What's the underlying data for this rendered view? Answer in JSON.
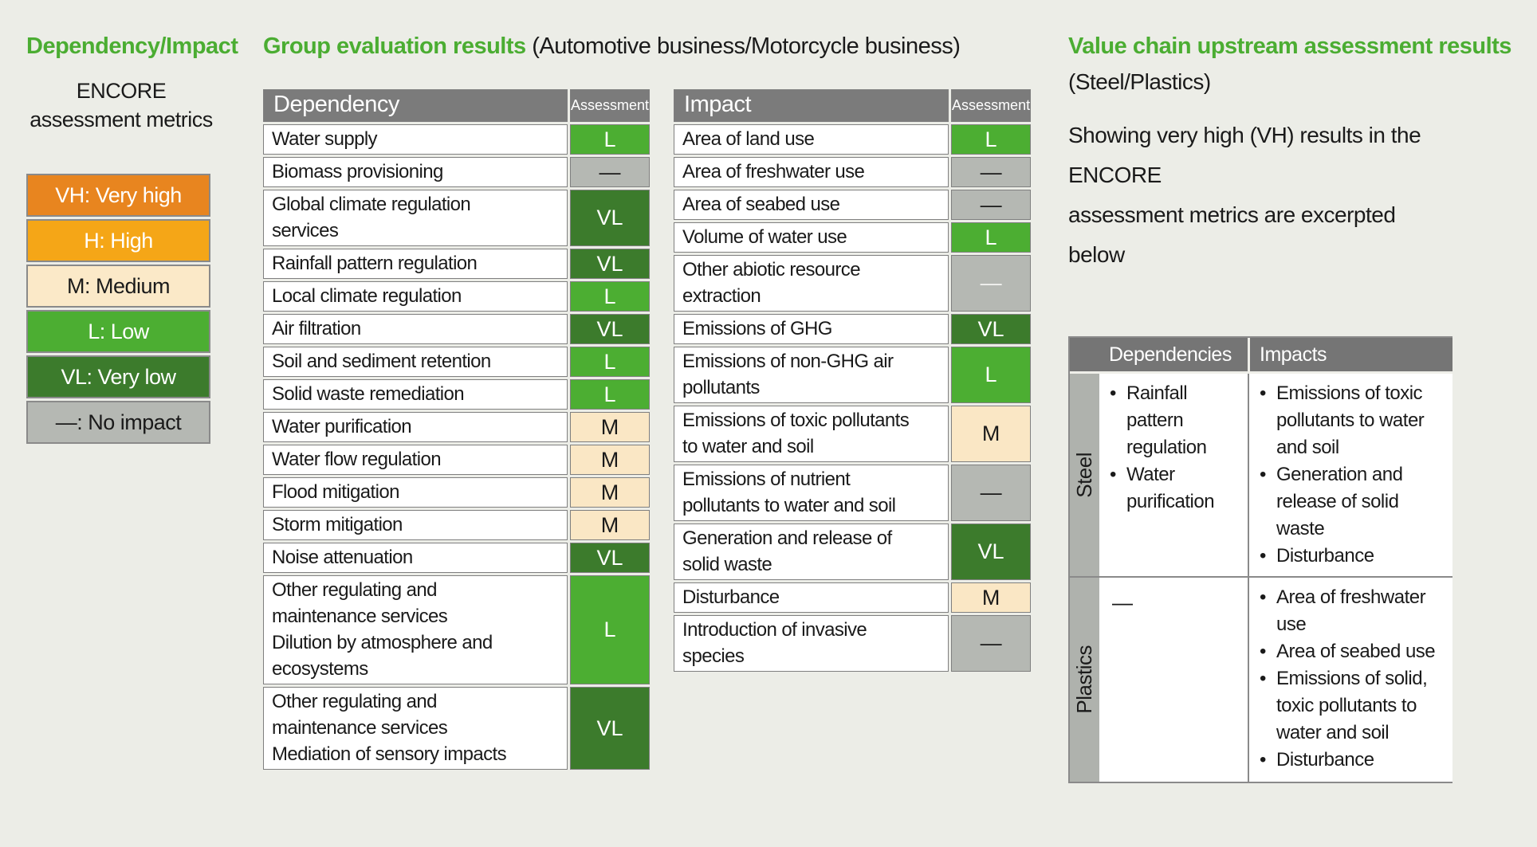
{
  "colors": {
    "background": "#ECEDE7",
    "accent_green": "#4BAD32",
    "header_gray": "#7B7B7B",
    "border_gray": "#7F7F7F",
    "label_gray": "#AFB2AD",
    "text": "#1A1A1A"
  },
  "levels": {
    "L": {
      "text": "L",
      "bg": "#4CAE32",
      "fg": "#FFFFFF"
    },
    "VL": {
      "text": "VL",
      "bg": "#3C7B2C",
      "fg": "#FFFFFF"
    },
    "M": {
      "text": "M",
      "bg": "#FAE7C5",
      "fg": "#1A1A1A"
    },
    "NONE": {
      "text": "—",
      "bg": "#B5B8B3",
      "fg": "#1A1A1A"
    },
    "NONE_LIGHT": {
      "text": "—",
      "bg": "#B5B8B3",
      "fg": "#F4F4F2"
    }
  },
  "legend": {
    "title": "Dependency/Impact",
    "subtitle_line1": "ENCORE",
    "subtitle_line2": "assessment metrics",
    "items": [
      {
        "label": "VH: Very high",
        "bg": "#E8851F",
        "fg": "#FFFFFF"
      },
      {
        "label": "H: High",
        "bg": "#F5A617",
        "fg": "#FFFFFF"
      },
      {
        "label": "M: Medium",
        "bg": "#FBE9C8",
        "fg": "#1A1A1A"
      },
      {
        "label": "L: Low",
        "bg": "#4CAE32",
        "fg": "#FFFFFF"
      },
      {
        "label": "VL: Very low",
        "bg": "#3C7B2C",
        "fg": "#FFFFFF"
      },
      {
        "label": "—: No impact",
        "bg": "#B5B8B3",
        "fg": "#1A1A1A"
      }
    ]
  },
  "group_results": {
    "title": "Group evaluation results",
    "subtitle": " (Automotive business/Motorcycle business)",
    "assessment_header": "Assessment",
    "dependency": {
      "header": "Dependency",
      "rows": [
        {
          "lines": [
            "Water supply"
          ],
          "level": "L"
        },
        {
          "lines": [
            "Biomass provisioning"
          ],
          "level": "NONE"
        },
        {
          "lines": [
            "Global climate regulation",
            "services"
          ],
          "level": "VL"
        },
        {
          "lines": [
            "Rainfall pattern regulation"
          ],
          "level": "VL"
        },
        {
          "lines": [
            "Local climate regulation"
          ],
          "level": "L"
        },
        {
          "lines": [
            "Air filtration"
          ],
          "level": "VL"
        },
        {
          "lines": [
            "Soil and sediment retention"
          ],
          "level": "L"
        },
        {
          "lines": [
            "Solid waste remediation"
          ],
          "level": "L"
        },
        {
          "lines": [
            "Water purification"
          ],
          "level": "M"
        },
        {
          "lines": [
            "Water flow regulation"
          ],
          "level": "M"
        },
        {
          "lines": [
            "Flood mitigation"
          ],
          "level": "M"
        },
        {
          "lines": [
            "Storm mitigation"
          ],
          "level": "M"
        },
        {
          "lines": [
            "Noise attenuation"
          ],
          "level": "VL"
        },
        {
          "lines": [
            "Other regulating and",
            "maintenance services",
            "Dilution by atmosphere and",
            "ecosystems"
          ],
          "level": "L"
        },
        {
          "lines": [
            "Other regulating and",
            "maintenance services",
            "Mediation of sensory impacts"
          ],
          "level": "VL"
        }
      ]
    },
    "impact": {
      "header": "Impact",
      "rows": [
        {
          "lines": [
            "Area of land use"
          ],
          "level": "L"
        },
        {
          "lines": [
            "Area of freshwater use"
          ],
          "level": "NONE"
        },
        {
          "lines": [
            "Area of seabed use"
          ],
          "level": "NONE"
        },
        {
          "lines": [
            "Volume of water use"
          ],
          "level": "L"
        },
        {
          "lines": [
            "Other abiotic resource",
            "extraction"
          ],
          "level": "NONE_LIGHT"
        },
        {
          "lines": [
            "Emissions of GHG"
          ],
          "level": "VL"
        },
        {
          "lines": [
            "Emissions of non-GHG air",
            "pollutants"
          ],
          "level": "L"
        },
        {
          "lines": [
            "Emissions of toxic pollutants",
            "to water and soil"
          ],
          "level": "M"
        },
        {
          "lines": [
            "Emissions of nutrient",
            "pollutants to water and soil"
          ],
          "level": "NONE"
        },
        {
          "lines": [
            "Generation and release of",
            "solid waste"
          ],
          "level": "VL"
        },
        {
          "lines": [
            "Disturbance"
          ],
          "level": "M"
        },
        {
          "lines": [
            "Introduction of invasive",
            "species"
          ],
          "level": "NONE"
        }
      ]
    }
  },
  "value_chain": {
    "title": "Value chain upstream assessment results",
    "subtitle": "(Steel/Plastics)",
    "description_line1": "Showing very high (VH) results in the ENCORE",
    "description_line2": "assessment metrics are excerpted below",
    "table": {
      "headers": {
        "dependencies": "Dependencies",
        "impacts": "Impacts"
      },
      "rows": [
        {
          "label": "Steel",
          "dependencies": [
            "Rainfall pattern regulation",
            "Water purification"
          ],
          "impacts": [
            "Emissions of toxic pollutants to water and soil",
            "Generation and release of solid waste",
            "Disturbance"
          ]
        },
        {
          "label": "Plastics",
          "dependencies_dash": "—",
          "dependencies": [],
          "impacts": [
            "Area of freshwater use",
            "Area of seabed use",
            "Emissions of solid, toxic pollutants to water and soil",
            "Disturbance"
          ]
        }
      ]
    }
  }
}
